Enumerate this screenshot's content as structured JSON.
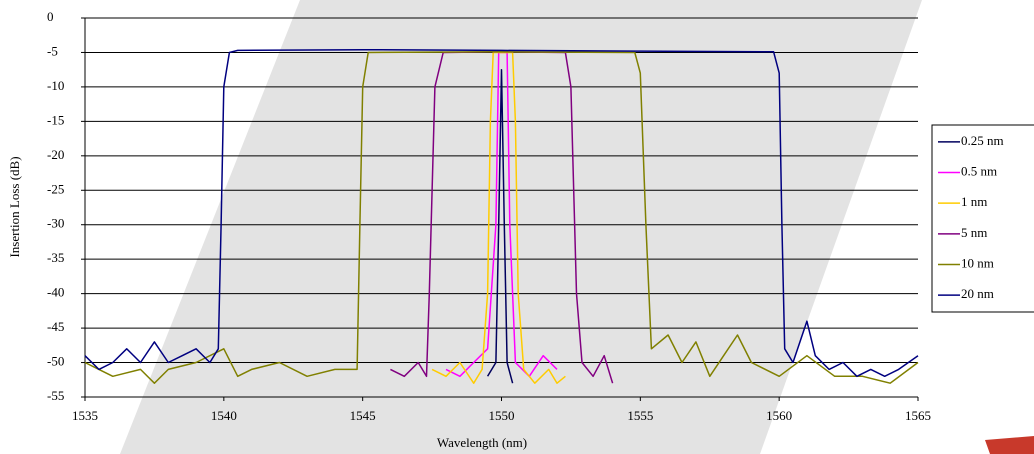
{
  "chart_data": {
    "type": "line",
    "xlabel": "Wavelength (nm)",
    "ylabel": "Insertion Loss (dB)",
    "xlim": [
      1535,
      1565
    ],
    "xticks": [
      1535,
      1540,
      1545,
      1550,
      1555,
      1560,
      1565
    ],
    "ylim": [
      -55,
      0
    ],
    "yticks": [
      0,
      -5,
      -10,
      -15,
      -20,
      -25,
      -30,
      -35,
      -40,
      -45,
      -50,
      -55
    ],
    "grid": true,
    "legend": "right",
    "series": [
      {
        "name": "0.25 nm",
        "color": "#00005e",
        "x": [
          1549.5,
          1549.8,
          1549.9,
          1550,
          1550.1,
          1550.2,
          1550.4
        ],
        "values": [
          -52,
          -50,
          -30,
          -7.5,
          -30,
          -50,
          -53
        ]
      },
      {
        "name": "0.5 nm",
        "color": "#ff00ff",
        "x": [
          1548,
          1548.5,
          1549,
          1549.5,
          1549.8,
          1549.9,
          1550.2,
          1550.3,
          1550.5,
          1551,
          1551.5,
          1552
        ],
        "values": [
          -51,
          -52,
          -50,
          -48,
          -30,
          -5,
          -5,
          -30,
          -50,
          -52,
          -49,
          -51
        ]
      },
      {
        "name": "1 nm",
        "color": "#ffcc00",
        "x": [
          1547.5,
          1548,
          1548.5,
          1549,
          1549.3,
          1549.5,
          1549.6,
          1549.7,
          1550.4,
          1550.5,
          1550.6,
          1550.8,
          1551.2,
          1551.7,
          1552,
          1552.3
        ],
        "values": [
          -51,
          -52,
          -50,
          -53,
          -51,
          -40,
          -15,
          -5,
          -5,
          -15,
          -40,
          -51,
          -53,
          -51,
          -53,
          -52
        ]
      },
      {
        "name": "5 nm",
        "color": "#800080",
        "x": [
          1546,
          1546.5,
          1547,
          1547.3,
          1547.4,
          1547.6,
          1547.9,
          1550,
          1552.3,
          1552.5,
          1552.7,
          1552.9,
          1553.3,
          1553.7,
          1554
        ],
        "values": [
          -51,
          -52,
          -50,
          -52,
          -40,
          -10,
          -5,
          -4.9,
          -5,
          -10,
          -40,
          -50,
          -52,
          -49,
          -53
        ]
      },
      {
        "name": "10 nm",
        "color": "#808000",
        "x": [
          1535,
          1535.5,
          1536,
          1537,
          1537.5,
          1538,
          1539,
          1540,
          1540.5,
          1541,
          1542,
          1543,
          1544,
          1544.8,
          1544.9,
          1545,
          1545.2,
          1550,
          1554.8,
          1555,
          1555.2,
          1555.4,
          1556,
          1556.5,
          1557,
          1557.5,
          1558,
          1558.5,
          1559,
          1560,
          1561,
          1562,
          1563,
          1564,
          1565
        ],
        "values": [
          -50,
          -51,
          -52,
          -51,
          -53,
          -51,
          -50,
          -48,
          -52,
          -51,
          -50,
          -52,
          -51,
          -51,
          -30,
          -10,
          -5,
          -4.9,
          -5,
          -8,
          -30,
          -48,
          -46,
          -50,
          -47,
          -52,
          -49,
          -46,
          -50,
          -52,
          -49,
          -52,
          -52,
          -53,
          -50
        ]
      },
      {
        "name": "20 nm",
        "color": "#000080",
        "x": [
          1535,
          1535.5,
          1536,
          1536.5,
          1537,
          1537.5,
          1538,
          1538.5,
          1539,
          1539.5,
          1539.8,
          1539.9,
          1540,
          1540.2,
          1540.5,
          1545,
          1550,
          1555,
          1559.8,
          1560,
          1560.1,
          1560.2,
          1560.5,
          1561,
          1561.3,
          1561.8,
          1562.3,
          1562.8,
          1563.3,
          1563.8,
          1564.3,
          1565
        ],
        "values": [
          -49,
          -51,
          -50,
          -48,
          -50,
          -47,
          -50,
          -49,
          -48,
          -50,
          -48,
          -30,
          -10,
          -5,
          -4.7,
          -4.6,
          -4.7,
          -4.8,
          -4.9,
          -8,
          -30,
          -48,
          -50,
          -44,
          -49,
          -51,
          -50,
          -52,
          -51,
          -52,
          -51,
          -49
        ]
      }
    ]
  }
}
